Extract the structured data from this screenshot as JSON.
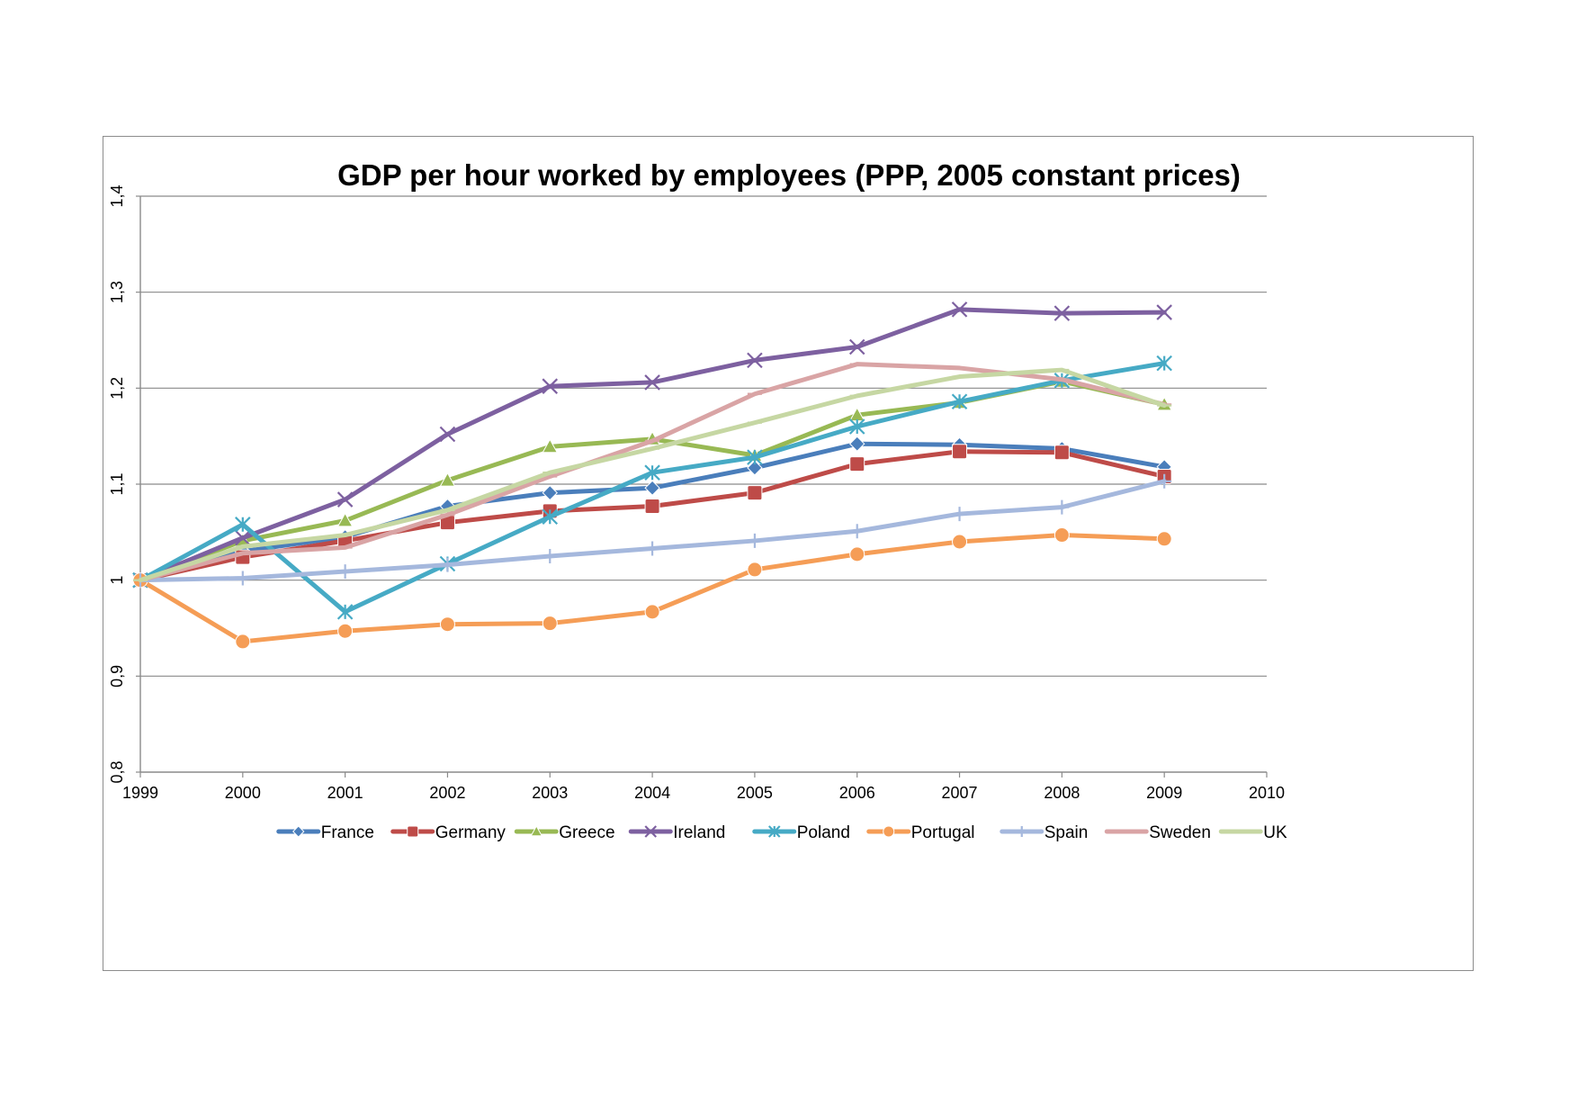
{
  "chart_data": {
    "type": "line",
    "title": "GDP per hour worked by employees (PPP, 2005 constant prices)",
    "xlabel": "",
    "ylabel": "",
    "x": [
      1999,
      2000,
      2001,
      2002,
      2003,
      2004,
      2005,
      2006,
      2007,
      2008,
      2009
    ],
    "xlim": [
      1999,
      2010
    ],
    "ylim": [
      0.8,
      1.4
    ],
    "x_ticks": [
      "1999",
      "2000",
      "2001",
      "2002",
      "2003",
      "2004",
      "2005",
      "2006",
      "2007",
      "2008",
      "2009",
      "2010"
    ],
    "y_ticks": [
      {
        "value": 0.8,
        "label": "0,8"
      },
      {
        "value": 0.9,
        "label": "0,9"
      },
      {
        "value": 1.0,
        "label": "1"
      },
      {
        "value": 1.1,
        "label": "1,1"
      },
      {
        "value": 1.2,
        "label": "1,2"
      },
      {
        "value": 1.3,
        "label": "1,3"
      },
      {
        "value": 1.4,
        "label": "1,4"
      }
    ],
    "grid": "horizontal",
    "legend_position": "bottom",
    "series": [
      {
        "name": "France",
        "color": "#4a7ebb",
        "marker": "diamond",
        "values": [
          1.0,
          1.03,
          1.045,
          1.077,
          1.091,
          1.096,
          1.117,
          1.142,
          1.141,
          1.137,
          1.118
        ]
      },
      {
        "name": "Germany",
        "color": "#be4b48",
        "marker": "square",
        "values": [
          1.0,
          1.024,
          1.041,
          1.06,
          1.072,
          1.077,
          1.091,
          1.121,
          1.134,
          1.133,
          1.108
        ]
      },
      {
        "name": "Greece",
        "color": "#98b954",
        "marker": "triangle",
        "values": [
          1.0,
          1.041,
          1.062,
          1.104,
          1.139,
          1.147,
          1.13,
          1.172,
          1.185,
          1.207,
          1.183
        ]
      },
      {
        "name": "Ireland",
        "color": "#7d60a0",
        "marker": "x",
        "values": [
          1.0,
          1.044,
          1.084,
          1.152,
          1.202,
          1.206,
          1.229,
          1.243,
          1.282,
          1.278,
          1.279
        ]
      },
      {
        "name": "Poland",
        "color": "#46aac5",
        "marker": "star",
        "values": [
          1.0,
          1.058,
          0.967,
          1.017,
          1.066,
          1.112,
          1.128,
          1.16,
          1.186,
          1.208,
          1.226
        ]
      },
      {
        "name": "Portugal",
        "color": "#f59d56",
        "marker": "circle",
        "values": [
          1.0,
          0.936,
          0.947,
          0.954,
          0.955,
          0.967,
          1.011,
          1.027,
          1.04,
          1.047,
          1.043
        ]
      },
      {
        "name": "Spain",
        "color": "#a5b8dd",
        "marker": "plus",
        "values": [
          1.0,
          1.002,
          1.009,
          1.016,
          1.025,
          1.033,
          1.041,
          1.051,
          1.069,
          1.076,
          1.103
        ]
      },
      {
        "name": "Sweden",
        "color": "#d9a4a5",
        "marker": "dash",
        "values": [
          1.0,
          1.028,
          1.034,
          1.068,
          1.108,
          1.145,
          1.194,
          1.225,
          1.221,
          1.209,
          1.183
        ]
      },
      {
        "name": "UK",
        "color": "#c6d7a3",
        "marker": "dash",
        "values": [
          1.0,
          1.035,
          1.047,
          1.073,
          1.112,
          1.137,
          1.164,
          1.192,
          1.212,
          1.219,
          1.182
        ]
      }
    ]
  }
}
